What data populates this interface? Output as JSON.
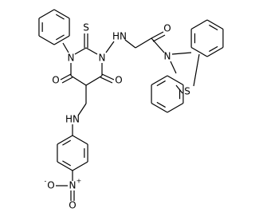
{
  "labels": {
    "thioxo_s": "S",
    "ring_n1": "N",
    "ring_n3": "N",
    "amine_nh": "HN",
    "keto_o": "O",
    "phenothiazine_n": "N",
    "phenothiazine_s": "S",
    "ring_o4": "O",
    "ring_o6": "O",
    "aniline_nh": "HN",
    "nitro_n": "N",
    "nitro_plus": "+",
    "nitro_o_left": "O",
    "nitro_minus": "-",
    "nitro_o_bottom": "O"
  }
}
